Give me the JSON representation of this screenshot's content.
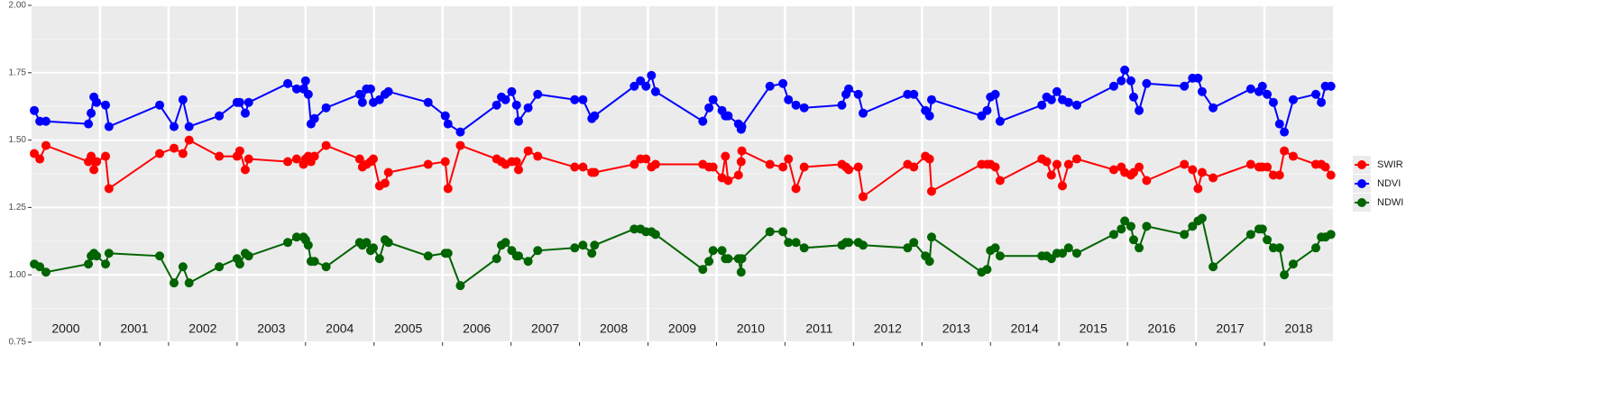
{
  "chart_data": {
    "type": "line",
    "x": [
      2000.04,
      2000.12,
      2000.21,
      2000.83,
      2000.87,
      2000.91,
      2000.95,
      2001.08,
      2001.13,
      2001.87,
      2002.08,
      2002.21,
      2002.3,
      2002.74,
      2003.0,
      2003.04,
      2003.12,
      2003.17,
      2003.74,
      2003.87,
      2003.97,
      2004.0,
      2004.04,
      2004.08,
      2004.13,
      2004.3,
      2004.79,
      2004.83,
      2004.89,
      2004.95,
      2004.99,
      2005.08,
      2005.16,
      2005.21,
      2005.79,
      2006.04,
      2006.08,
      2006.26,
      2006.79,
      2006.86,
      2006.92,
      2007.01,
      2007.08,
      2007.11,
      2007.25,
      2007.39,
      2007.93,
      2008.05,
      2008.18,
      2008.22,
      2008.8,
      2008.89,
      2008.97,
      2009.05,
      2009.11,
      2009.8,
      2009.89,
      2009.95,
      2010.08,
      2010.13,
      2010.17,
      2010.32,
      2010.36,
      2010.37,
      2010.78,
      2010.97,
      2011.05,
      2011.16,
      2011.28,
      2011.83,
      2011.89,
      2011.93,
      2012.07,
      2012.14,
      2012.79,
      2012.88,
      2013.05,
      2013.11,
      2013.14,
      2013.87,
      2013.95,
      2014.0,
      2014.07,
      2014.14,
      2014.75,
      2014.82,
      2014.89,
      2014.97,
      2015.05,
      2015.14,
      2015.26,
      2015.8,
      2015.91,
      2015.96,
      2016.05,
      2016.09,
      2016.17,
      2016.28,
      2016.83,
      2016.95,
      2017.03,
      2017.09,
      2017.25,
      2017.8,
      2017.92,
      2017.97,
      2018.04,
      2018.13,
      2018.22,
      2018.29,
      2018.42,
      2018.75,
      2018.83,
      2018.89,
      2018.97
    ],
    "series": [
      {
        "name": "SWIR",
        "color": "#ff0000",
        "values": [
          1.45,
          1.43,
          1.48,
          1.42,
          1.44,
          1.39,
          1.42,
          1.44,
          1.32,
          1.45,
          1.47,
          1.45,
          1.5,
          1.44,
          1.44,
          1.46,
          1.39,
          1.43,
          1.42,
          1.43,
          1.41,
          1.43,
          1.44,
          1.42,
          1.44,
          1.48,
          1.43,
          1.4,
          1.41,
          1.42,
          1.43,
          1.33,
          1.34,
          1.38,
          1.41,
          1.42,
          1.32,
          1.48,
          1.43,
          1.42,
          1.41,
          1.42,
          1.42,
          1.39,
          1.46,
          1.44,
          1.4,
          1.4,
          1.38,
          1.38,
          1.41,
          1.43,
          1.43,
          1.4,
          1.41,
          1.41,
          1.4,
          1.4,
          1.36,
          1.44,
          1.35,
          1.37,
          1.42,
          1.46,
          1.41,
          1.4,
          1.43,
          1.32,
          1.4,
          1.41,
          1.4,
          1.39,
          1.4,
          1.29,
          1.41,
          1.4,
          1.44,
          1.43,
          1.31,
          1.41,
          1.41,
          1.41,
          1.4,
          1.35,
          1.43,
          1.42,
          1.37,
          1.41,
          1.33,
          1.41,
          1.43,
          1.39,
          1.4,
          1.38,
          1.37,
          1.38,
          1.4,
          1.35,
          1.41,
          1.39,
          1.32,
          1.38,
          1.36,
          1.41,
          1.4,
          1.4,
          1.4,
          1.37,
          1.37,
          1.46,
          1.44,
          1.41,
          1.41,
          1.4,
          1.37
        ]
      },
      {
        "name": "NDVI",
        "color": "#0000ff",
        "values": [
          1.61,
          1.57,
          1.57,
          1.56,
          1.6,
          1.66,
          1.64,
          1.63,
          1.55,
          1.63,
          1.55,
          1.65,
          1.55,
          1.59,
          1.64,
          1.64,
          1.6,
          1.64,
          1.71,
          1.69,
          1.69,
          1.72,
          1.67,
          1.56,
          1.58,
          1.62,
          1.67,
          1.64,
          1.69,
          1.69,
          1.64,
          1.65,
          1.67,
          1.68,
          1.64,
          1.59,
          1.56,
          1.53,
          1.63,
          1.66,
          1.65,
          1.68,
          1.63,
          1.57,
          1.62,
          1.67,
          1.65,
          1.65,
          1.58,
          1.59,
          1.7,
          1.72,
          1.7,
          1.74,
          1.68,
          1.57,
          1.62,
          1.65,
          1.61,
          1.59,
          1.59,
          1.56,
          1.54,
          1.55,
          1.7,
          1.71,
          1.65,
          1.63,
          1.62,
          1.63,
          1.67,
          1.69,
          1.67,
          1.6,
          1.67,
          1.67,
          1.61,
          1.59,
          1.65,
          1.59,
          1.61,
          1.66,
          1.67,
          1.57,
          1.63,
          1.66,
          1.65,
          1.68,
          1.65,
          1.64,
          1.63,
          1.7,
          1.72,
          1.76,
          1.72,
          1.66,
          1.61,
          1.71,
          1.7,
          1.73,
          1.73,
          1.68,
          1.62,
          1.69,
          1.68,
          1.7,
          1.67,
          1.64,
          1.56,
          1.53,
          1.65,
          1.67,
          1.64,
          1.7,
          1.7
        ]
      },
      {
        "name": "NDWI",
        "color": "#006400",
        "values": [
          1.04,
          1.03,
          1.01,
          1.04,
          1.07,
          1.08,
          1.07,
          1.04,
          1.08,
          1.07,
          0.97,
          1.03,
          0.97,
          1.03,
          1.06,
          1.04,
          1.08,
          1.07,
          1.12,
          1.14,
          1.14,
          1.13,
          1.11,
          1.05,
          1.05,
          1.03,
          1.12,
          1.11,
          1.12,
          1.09,
          1.1,
          1.06,
          1.13,
          1.12,
          1.07,
          1.08,
          1.08,
          0.96,
          1.06,
          1.11,
          1.12,
          1.09,
          1.07,
          1.07,
          1.05,
          1.09,
          1.1,
          1.11,
          1.08,
          1.11,
          1.17,
          1.17,
          1.16,
          1.16,
          1.15,
          1.02,
          1.05,
          1.09,
          1.09,
          1.06,
          1.06,
          1.06,
          1.01,
          1.06,
          1.16,
          1.16,
          1.12,
          1.12,
          1.1,
          1.11,
          1.12,
          1.12,
          1.12,
          1.11,
          1.1,
          1.12,
          1.07,
          1.05,
          1.14,
          1.01,
          1.02,
          1.09,
          1.1,
          1.07,
          1.07,
          1.07,
          1.06,
          1.08,
          1.08,
          1.1,
          1.08,
          1.15,
          1.17,
          1.2,
          1.18,
          1.13,
          1.1,
          1.18,
          1.15,
          1.18,
          1.2,
          1.21,
          1.03,
          1.15,
          1.17,
          1.17,
          1.13,
          1.1,
          1.1,
          1.0,
          1.04,
          1.1,
          1.14,
          1.14,
          1.15
        ]
      }
    ],
    "xlim": [
      2000,
      2019
    ],
    "xticks": [
      {
        "value": 2000.5,
        "label": "2000"
      },
      {
        "value": 2001.5,
        "label": "2001"
      },
      {
        "value": 2002.5,
        "label": "2002"
      },
      {
        "value": 2003.5,
        "label": "2003"
      },
      {
        "value": 2004.5,
        "label": "2004"
      },
      {
        "value": 2005.5,
        "label": "2005"
      },
      {
        "value": 2006.5,
        "label": "2006"
      },
      {
        "value": 2007.5,
        "label": "2007"
      },
      {
        "value": 2008.5,
        "label": "2008"
      },
      {
        "value": 2009.5,
        "label": "2009"
      },
      {
        "value": 2010.5,
        "label": "2010"
      },
      {
        "value": 2011.5,
        "label": "2011"
      },
      {
        "value": 2012.5,
        "label": "2012"
      },
      {
        "value": 2013.5,
        "label": "2013"
      },
      {
        "value": 2014.5,
        "label": "2014"
      },
      {
        "value": 2015.5,
        "label": "2015"
      },
      {
        "value": 2016.5,
        "label": "2016"
      },
      {
        "value": 2017.5,
        "label": "2017"
      },
      {
        "value": 2018.5,
        "label": "2018"
      }
    ],
    "year_boundaries": [
      2001,
      2002,
      2003,
      2004,
      2005,
      2006,
      2007,
      2008,
      2009,
      2010,
      2011,
      2012,
      2013,
      2014,
      2015,
      2016,
      2017,
      2018
    ],
    "ylim": [
      0.75,
      2.0
    ],
    "yticks": [
      {
        "value": 0.75,
        "label": "0.75"
      },
      {
        "value": 1.0,
        "label": "1.00"
      },
      {
        "value": 1.25,
        "label": "1.25"
      },
      {
        "value": 1.5,
        "label": "1.50"
      },
      {
        "value": 1.75,
        "label": "1.75"
      },
      {
        "value": 2.0,
        "label": "2.00"
      }
    ],
    "grid": true,
    "legend": "right"
  }
}
